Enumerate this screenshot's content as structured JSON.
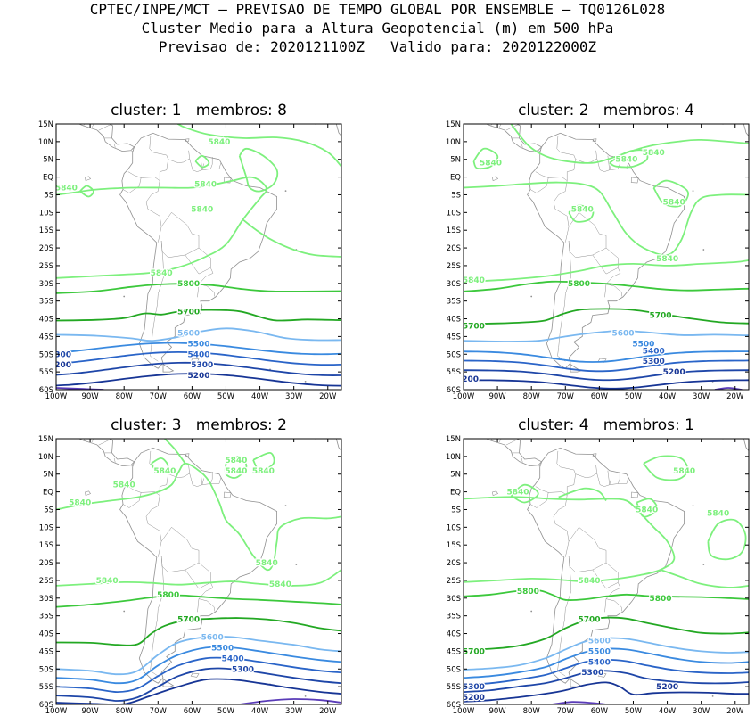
{
  "header": {
    "line1": "CPTEC/INPE/MCT — PREVISAO DE TEMPO GLOBAL POR ENSEMBLE — TQ0126L028",
    "line2": "Cluster Medio para a Altura Geopotencial (m) em 500 hPa",
    "line3": "Previsao de: 2020121100Z   Valido para: 2020122000Z"
  },
  "axes": {
    "lat_labels": [
      "15N",
      "10N",
      "5N",
      "EQ",
      "5S",
      "10S",
      "15S",
      "20S",
      "25S",
      "30S",
      "35S",
      "40S",
      "45S",
      "50S",
      "55S",
      "60S"
    ],
    "lon_labels": [
      "100W",
      "90W",
      "80W",
      "70W",
      "60W",
      "50W",
      "40W",
      "30W",
      "20W"
    ]
  },
  "colors": {
    "c5840": "#7df07d",
    "c5800": "#3cc83c",
    "c5700": "#23a823",
    "c5600": "#7ab8f0",
    "c5500": "#3a8ae0",
    "c5400": "#2a64c8",
    "c5300": "#1e46a8",
    "c5200": "#173595",
    "c5100": "#5a3cb8",
    "coast": "#909090"
  },
  "panels": [
    {
      "title": "cluster: 1   membros: 8",
      "labels": [
        {
          "text": "5840",
          "lon": -52,
          "lat": 10,
          "c": "c5840"
        },
        {
          "text": "5840",
          "lon": -97,
          "lat": -3,
          "c": "c5840"
        },
        {
          "text": "5840",
          "lon": -56,
          "lat": -2,
          "c": "c5840"
        },
        {
          "text": "5840",
          "lon": -57,
          "lat": -9,
          "c": "c5840"
        },
        {
          "text": "5840",
          "lon": -69,
          "lat": -27,
          "c": "c5840"
        },
        {
          "text": "5800",
          "lon": -61,
          "lat": -30,
          "c": "c5800"
        },
        {
          "text": "5700",
          "lon": -61,
          "lat": -38,
          "c": "c5700"
        },
        {
          "text": "5600",
          "lon": -61,
          "lat": -44,
          "c": "c5600"
        },
        {
          "text": "5500",
          "lon": -58,
          "lat": -47,
          "c": "c5500"
        },
        {
          "text": "5400",
          "lon": -58,
          "lat": -50,
          "c": "c5400"
        },
        {
          "text": "5300",
          "lon": -57,
          "lat": -53,
          "c": "c5300"
        },
        {
          "text": "5200",
          "lon": -58,
          "lat": -56,
          "c": "c5200"
        },
        {
          "text": "300",
          "lon": -98,
          "lat": -50,
          "c": "c5300"
        },
        {
          "text": "200",
          "lon": -98,
          "lat": -53,
          "c": "c5200"
        }
      ]
    },
    {
      "title": "cluster: 2   membros: 4",
      "labels": [
        {
          "text": "5840",
          "lon": -92,
          "lat": 4,
          "c": "c5840"
        },
        {
          "text": "5840",
          "lon": -52,
          "lat": 5,
          "c": "c5840"
        },
        {
          "text": "5840",
          "lon": -44,
          "lat": 7,
          "c": "c5840"
        },
        {
          "text": "5840",
          "lon": -65,
          "lat": -9,
          "c": "c5840"
        },
        {
          "text": "5840",
          "lon": -38,
          "lat": -7,
          "c": "c5840"
        },
        {
          "text": "5840",
          "lon": -40,
          "lat": -23,
          "c": "c5840"
        },
        {
          "text": "5840",
          "lon": -97,
          "lat": -29,
          "c": "c5840"
        },
        {
          "text": "5800",
          "lon": -66,
          "lat": -30,
          "c": "c5800"
        },
        {
          "text": "5700",
          "lon": -97,
          "lat": -42,
          "c": "c5700"
        },
        {
          "text": "5700",
          "lon": -42,
          "lat": -39,
          "c": "c5700"
        },
        {
          "text": "5600",
          "lon": -53,
          "lat": -44,
          "c": "c5600"
        },
        {
          "text": "5500",
          "lon": -47,
          "lat": -47,
          "c": "c5500"
        },
        {
          "text": "5400",
          "lon": -44,
          "lat": -49,
          "c": "c5400"
        },
        {
          "text": "5300",
          "lon": -44,
          "lat": -52,
          "c": "c5300"
        },
        {
          "text": "5200",
          "lon": -38,
          "lat": -55,
          "c": "c5200"
        },
        {
          "text": "200",
          "lon": -98,
          "lat": -57,
          "c": "c5200"
        }
      ]
    },
    {
      "title": "cluster: 3   membros: 2",
      "labels": [
        {
          "text": "5840",
          "lon": -47,
          "lat": 9,
          "c": "c5840"
        },
        {
          "text": "5840",
          "lon": -68,
          "lat": 6,
          "c": "c5840"
        },
        {
          "text": "5840",
          "lon": -47,
          "lat": 6,
          "c": "c5840"
        },
        {
          "text": "5840",
          "lon": -39,
          "lat": 6,
          "c": "c5840"
        },
        {
          "text": "5840",
          "lon": -80,
          "lat": 2,
          "c": "c5840"
        },
        {
          "text": "5840",
          "lon": -93,
          "lat": -3,
          "c": "c5840"
        },
        {
          "text": "5840",
          "lon": -38,
          "lat": -20,
          "c": "c5840"
        },
        {
          "text": "5840",
          "lon": -85,
          "lat": -25,
          "c": "c5840"
        },
        {
          "text": "5840",
          "lon": -34,
          "lat": -26,
          "c": "c5840"
        },
        {
          "text": "5800",
          "lon": -67,
          "lat": -29,
          "c": "c5800"
        },
        {
          "text": "5700",
          "lon": -61,
          "lat": -36,
          "c": "c5700"
        },
        {
          "text": "5600",
          "lon": -54,
          "lat": -41,
          "c": "c5600"
        },
        {
          "text": "5500",
          "lon": -51,
          "lat": -44,
          "c": "c5500"
        },
        {
          "text": "5400",
          "lon": -48,
          "lat": -47,
          "c": "c5400"
        },
        {
          "text": "5300",
          "lon": -45,
          "lat": -50,
          "c": "c5300"
        }
      ]
    },
    {
      "title": "cluster: 4   membros: 1",
      "labels": [
        {
          "text": "5840",
          "lon": -35,
          "lat": 6,
          "c": "c5840"
        },
        {
          "text": "5840",
          "lon": -84,
          "lat": 0,
          "c": "c5840"
        },
        {
          "text": "5840",
          "lon": -46,
          "lat": -5,
          "c": "c5840"
        },
        {
          "text": "5840",
          "lon": -25,
          "lat": -6,
          "c": "c5840"
        },
        {
          "text": "5840",
          "lon": -63,
          "lat": -25,
          "c": "c5840"
        },
        {
          "text": "5800",
          "lon": -81,
          "lat": -28,
          "c": "c5800"
        },
        {
          "text": "5800",
          "lon": -42,
          "lat": -30,
          "c": "c5800"
        },
        {
          "text": "5700",
          "lon": -63,
          "lat": -36,
          "c": "c5700"
        },
        {
          "text": "5700",
          "lon": -97,
          "lat": -45,
          "c": "c5700"
        },
        {
          "text": "5600",
          "lon": -60,
          "lat": -42,
          "c": "c5600"
        },
        {
          "text": "5500",
          "lon": -60,
          "lat": -45,
          "c": "c5500"
        },
        {
          "text": "5400",
          "lon": -60,
          "lat": -48,
          "c": "c5400"
        },
        {
          "text": "5300",
          "lon": -62,
          "lat": -51,
          "c": "c5300"
        },
        {
          "text": "5300",
          "lon": -97,
          "lat": -55,
          "c": "c5300"
        },
        {
          "text": "5200",
          "lon": -40,
          "lat": -55,
          "c": "c5200"
        },
        {
          "text": "5200",
          "lon": -97,
          "lat": -58,
          "c": "c5200"
        }
      ]
    }
  ]
}
